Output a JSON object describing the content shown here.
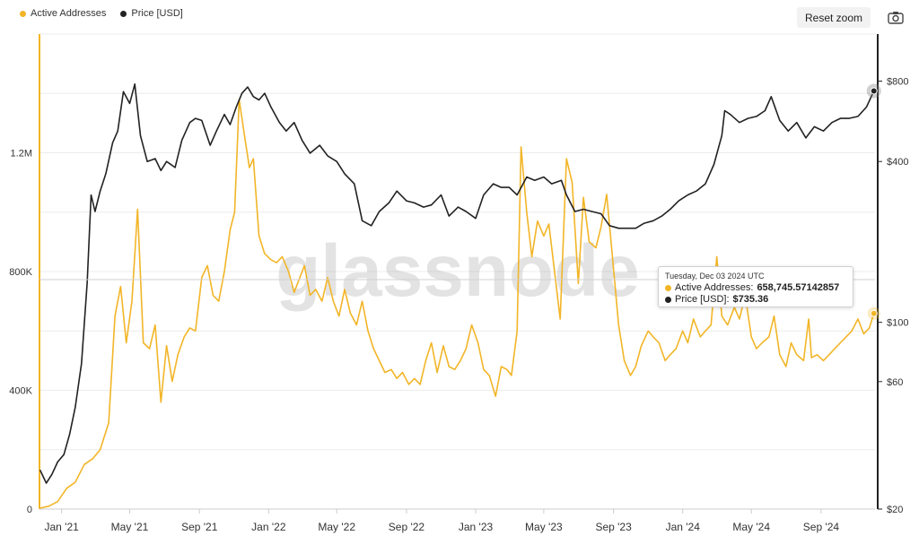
{
  "legend": [
    {
      "label": "Active Addresses",
      "color": "#f2b527"
    },
    {
      "label": "Price [USD]",
      "color": "#222222"
    }
  ],
  "toolbar": {
    "reset_label": "Reset zoom",
    "camera_icon": "camera-icon"
  },
  "watermark": "glassnode",
  "tooltip": {
    "date": "Tuesday, Dec 03 2024 UTC",
    "series1_label": "Active Addresses:",
    "series1_value": "658,745.57142857",
    "series2_label": "Price [USD]:",
    "series2_value": "$735.36"
  },
  "chart_data": {
    "type": "line",
    "x_ticks": [
      "Jan '21",
      "May '21",
      "Sep '21",
      "Jan '22",
      "May '22",
      "Sep '22",
      "Jan '23",
      "May '23",
      "Sep '23",
      "Jan '24",
      "May '24",
      "Sep '24"
    ],
    "y_left_ticks": [
      "0",
      "400K",
      "800K",
      "1.2M"
    ],
    "y_left_values": [
      0,
      400000,
      800000,
      1200000
    ],
    "y_right_ticks": [
      "$20",
      "$60",
      "$100",
      "$400",
      "$800"
    ],
    "y_right_values": [
      20,
      60,
      100,
      400,
      800
    ],
    "y_right_scale": "log",
    "x_range": [
      "2020-11-23",
      "2024-12-05"
    ],
    "y_left_range": [
      0,
      1600000
    ],
    "y_right_range": [
      20,
      1200
    ],
    "grid": true,
    "legend_position": "top-left",
    "series": [
      {
        "name": "Active Addresses",
        "color": "#f2b527",
        "axis": "left",
        "points": [
          [
            "2020-11-24",
            3000
          ],
          [
            "2020-12-10",
            10000
          ],
          [
            "2020-12-25",
            25000
          ],
          [
            "2021-01-10",
            70000
          ],
          [
            "2021-01-25",
            90000
          ],
          [
            "2021-02-10",
            150000
          ],
          [
            "2021-02-25",
            170000
          ],
          [
            "2021-03-10",
            200000
          ],
          [
            "2021-03-25",
            290000
          ],
          [
            "2021-04-05",
            650000
          ],
          [
            "2021-04-15",
            750000
          ],
          [
            "2021-04-25",
            560000
          ],
          [
            "2021-05-05",
            700000
          ],
          [
            "2021-05-15",
            1010000
          ],
          [
            "2021-05-25",
            560000
          ],
          [
            "2021-06-05",
            540000
          ],
          [
            "2021-06-15",
            620000
          ],
          [
            "2021-06-25",
            360000
          ],
          [
            "2021-07-05",
            550000
          ],
          [
            "2021-07-15",
            430000
          ],
          [
            "2021-07-25",
            520000
          ],
          [
            "2021-08-05",
            580000
          ],
          [
            "2021-08-15",
            610000
          ],
          [
            "2021-08-25",
            600000
          ],
          [
            "2021-09-05",
            780000
          ],
          [
            "2021-09-15",
            820000
          ],
          [
            "2021-09-25",
            720000
          ],
          [
            "2021-10-05",
            700000
          ],
          [
            "2021-10-15",
            800000
          ],
          [
            "2021-10-25",
            940000
          ],
          [
            "2021-11-02",
            1000000
          ],
          [
            "2021-11-10",
            1380000
          ],
          [
            "2021-11-20",
            1250000
          ],
          [
            "2021-11-28",
            1150000
          ],
          [
            "2021-12-05",
            1180000
          ],
          [
            "2021-12-15",
            920000
          ],
          [
            "2021-12-25",
            860000
          ],
          [
            "2022-01-05",
            840000
          ],
          [
            "2022-01-15",
            830000
          ],
          [
            "2022-01-25",
            850000
          ],
          [
            "2022-02-05",
            800000
          ],
          [
            "2022-02-15",
            730000
          ],
          [
            "2022-02-25",
            780000
          ],
          [
            "2022-03-05",
            820000
          ],
          [
            "2022-03-15",
            720000
          ],
          [
            "2022-03-25",
            740000
          ],
          [
            "2022-04-05",
            700000
          ],
          [
            "2022-04-15",
            780000
          ],
          [
            "2022-04-25",
            700000
          ],
          [
            "2022-05-05",
            650000
          ],
          [
            "2022-05-15",
            740000
          ],
          [
            "2022-05-25",
            660000
          ],
          [
            "2022-06-05",
            620000
          ],
          [
            "2022-06-15",
            700000
          ],
          [
            "2022-06-25",
            600000
          ],
          [
            "2022-07-05",
            540000
          ],
          [
            "2022-07-15",
            500000
          ],
          [
            "2022-07-25",
            460000
          ],
          [
            "2022-08-05",
            470000
          ],
          [
            "2022-08-15",
            440000
          ],
          [
            "2022-08-25",
            460000
          ],
          [
            "2022-09-05",
            420000
          ],
          [
            "2022-09-15",
            440000
          ],
          [
            "2022-09-25",
            420000
          ],
          [
            "2022-10-05",
            500000
          ],
          [
            "2022-10-15",
            560000
          ],
          [
            "2022-10-25",
            460000
          ],
          [
            "2022-11-05",
            550000
          ],
          [
            "2022-11-15",
            480000
          ],
          [
            "2022-11-25",
            470000
          ],
          [
            "2022-12-05",
            500000
          ],
          [
            "2022-12-15",
            540000
          ],
          [
            "2022-12-25",
            620000
          ],
          [
            "2023-01-05",
            560000
          ],
          [
            "2023-01-15",
            470000
          ],
          [
            "2023-01-25",
            450000
          ],
          [
            "2023-02-05",
            380000
          ],
          [
            "2023-02-15",
            480000
          ],
          [
            "2023-02-25",
            470000
          ],
          [
            "2023-03-05",
            450000
          ],
          [
            "2023-03-15",
            600000
          ],
          [
            "2023-03-22",
            1220000
          ],
          [
            "2023-04-01",
            1000000
          ],
          [
            "2023-04-10",
            850000
          ],
          [
            "2023-04-20",
            970000
          ],
          [
            "2023-05-01",
            920000
          ],
          [
            "2023-05-10",
            960000
          ],
          [
            "2023-05-20",
            800000
          ],
          [
            "2023-05-30",
            640000
          ],
          [
            "2023-06-10",
            1180000
          ],
          [
            "2023-06-20",
            1100000
          ],
          [
            "2023-07-01",
            760000
          ],
          [
            "2023-07-10",
            1050000
          ],
          [
            "2023-07-20",
            900000
          ],
          [
            "2023-08-01",
            880000
          ],
          [
            "2023-08-10",
            950000
          ],
          [
            "2023-08-20",
            1060000
          ],
          [
            "2023-08-30",
            850000
          ],
          [
            "2023-09-10",
            620000
          ],
          [
            "2023-09-20",
            500000
          ],
          [
            "2023-10-01",
            450000
          ],
          [
            "2023-10-10",
            480000
          ],
          [
            "2023-10-20",
            550000
          ],
          [
            "2023-11-01",
            600000
          ],
          [
            "2023-11-10",
            580000
          ],
          [
            "2023-11-20",
            560000
          ],
          [
            "2023-12-01",
            500000
          ],
          [
            "2023-12-10",
            520000
          ],
          [
            "2023-12-20",
            540000
          ],
          [
            "2024-01-01",
            600000
          ],
          [
            "2024-01-10",
            560000
          ],
          [
            "2024-01-20",
            640000
          ],
          [
            "2024-02-01",
            580000
          ],
          [
            "2024-02-10",
            600000
          ],
          [
            "2024-02-20",
            620000
          ],
          [
            "2024-03-01",
            850000
          ],
          [
            "2024-03-10",
            650000
          ],
          [
            "2024-03-20",
            620000
          ],
          [
            "2024-04-01",
            680000
          ],
          [
            "2024-04-10",
            640000
          ],
          [
            "2024-04-20",
            720000
          ],
          [
            "2024-05-01",
            580000
          ],
          [
            "2024-05-10",
            540000
          ],
          [
            "2024-05-20",
            560000
          ],
          [
            "2024-06-01",
            580000
          ],
          [
            "2024-06-10",
            650000
          ],
          [
            "2024-06-20",
            520000
          ],
          [
            "2024-07-01",
            480000
          ],
          [
            "2024-07-10",
            560000
          ],
          [
            "2024-07-20",
            520000
          ],
          [
            "2024-08-01",
            500000
          ],
          [
            "2024-08-10",
            640000
          ],
          [
            "2024-08-15",
            510000
          ],
          [
            "2024-08-25",
            520000
          ],
          [
            "2024-09-05",
            500000
          ],
          [
            "2024-09-15",
            520000
          ],
          [
            "2024-09-25",
            540000
          ],
          [
            "2024-10-05",
            560000
          ],
          [
            "2024-10-15",
            580000
          ],
          [
            "2024-10-25",
            600000
          ],
          [
            "2024-11-05",
            640000
          ],
          [
            "2024-11-15",
            590000
          ],
          [
            "2024-11-25",
            610000
          ],
          [
            "2024-12-03",
            658746
          ]
        ]
      },
      {
        "name": "Price [USD]",
        "color": "#222222",
        "axis": "right",
        "points": [
          [
            "2020-11-24",
            28
          ],
          [
            "2020-12-05",
            25
          ],
          [
            "2020-12-15",
            27
          ],
          [
            "2020-12-25",
            30
          ],
          [
            "2021-01-05",
            32
          ],
          [
            "2021-01-15",
            38
          ],
          [
            "2021-01-25",
            48
          ],
          [
            "2021-02-05",
            70
          ],
          [
            "2021-02-15",
            140
          ],
          [
            "2021-02-22",
            300
          ],
          [
            "2021-03-01",
            260
          ],
          [
            "2021-03-10",
            310
          ],
          [
            "2021-03-20",
            360
          ],
          [
            "2021-04-01",
            470
          ],
          [
            "2021-04-10",
            520
          ],
          [
            "2021-04-20",
            730
          ],
          [
            "2021-05-01",
            660
          ],
          [
            "2021-05-10",
            780
          ],
          [
            "2021-05-20",
            500
          ],
          [
            "2021-06-01",
            400
          ],
          [
            "2021-06-15",
            410
          ],
          [
            "2021-06-25",
            370
          ],
          [
            "2021-07-05",
            400
          ],
          [
            "2021-07-20",
            380
          ],
          [
            "2021-08-01",
            480
          ],
          [
            "2021-08-15",
            560
          ],
          [
            "2021-08-25",
            580
          ],
          [
            "2021-09-05",
            570
          ],
          [
            "2021-09-20",
            460
          ],
          [
            "2021-10-01",
            520
          ],
          [
            "2021-10-15",
            600
          ],
          [
            "2021-10-25",
            550
          ],
          [
            "2021-11-05",
            640
          ],
          [
            "2021-11-15",
            720
          ],
          [
            "2021-11-25",
            760
          ],
          [
            "2021-12-05",
            700
          ],
          [
            "2021-12-15",
            680
          ],
          [
            "2021-12-25",
            720
          ],
          [
            "2022-01-05",
            640
          ],
          [
            "2022-01-20",
            560
          ],
          [
            "2022-02-01",
            520
          ],
          [
            "2022-02-15",
            560
          ],
          [
            "2022-03-01",
            480
          ],
          [
            "2022-03-15",
            430
          ],
          [
            "2022-04-01",
            460
          ],
          [
            "2022-04-15",
            420
          ],
          [
            "2022-05-01",
            400
          ],
          [
            "2022-05-15",
            360
          ],
          [
            "2022-06-01",
            330
          ],
          [
            "2022-06-15",
            240
          ],
          [
            "2022-07-01",
            230
          ],
          [
            "2022-07-15",
            260
          ],
          [
            "2022-08-01",
            280
          ],
          [
            "2022-08-15",
            310
          ],
          [
            "2022-09-01",
            285
          ],
          [
            "2022-09-15",
            280
          ],
          [
            "2022-10-01",
            270
          ],
          [
            "2022-10-15",
            275
          ],
          [
            "2022-11-01",
            300
          ],
          [
            "2022-11-15",
            250
          ],
          [
            "2022-12-01",
            270
          ],
          [
            "2022-12-15",
            260
          ],
          [
            "2023-01-01",
            245
          ],
          [
            "2023-01-15",
            300
          ],
          [
            "2023-02-01",
            330
          ],
          [
            "2023-02-15",
            320
          ],
          [
            "2023-03-01",
            320
          ],
          [
            "2023-03-15",
            300
          ],
          [
            "2023-04-01",
            350
          ],
          [
            "2023-04-15",
            340
          ],
          [
            "2023-05-01",
            350
          ],
          [
            "2023-05-15",
            330
          ],
          [
            "2023-06-01",
            340
          ],
          [
            "2023-06-10",
            300
          ],
          [
            "2023-06-25",
            260
          ],
          [
            "2023-07-10",
            265
          ],
          [
            "2023-07-25",
            260
          ],
          [
            "2023-08-10",
            255
          ],
          [
            "2023-08-25",
            230
          ],
          [
            "2023-09-10",
            225
          ],
          [
            "2023-09-25",
            225
          ],
          [
            "2023-10-10",
            225
          ],
          [
            "2023-10-25",
            235
          ],
          [
            "2023-11-10",
            240
          ],
          [
            "2023-11-25",
            250
          ],
          [
            "2023-12-10",
            265
          ],
          [
            "2023-12-25",
            285
          ],
          [
            "2024-01-10",
            300
          ],
          [
            "2024-01-25",
            310
          ],
          [
            "2024-02-10",
            330
          ],
          [
            "2024-02-25",
            390
          ],
          [
            "2024-03-10",
            500
          ],
          [
            "2024-03-15",
            620
          ],
          [
            "2024-03-25",
            600
          ],
          [
            "2024-04-10",
            560
          ],
          [
            "2024-04-25",
            580
          ],
          [
            "2024-05-10",
            590
          ],
          [
            "2024-05-25",
            620
          ],
          [
            "2024-06-05",
            700
          ],
          [
            "2024-06-20",
            570
          ],
          [
            "2024-07-05",
            520
          ],
          [
            "2024-07-20",
            560
          ],
          [
            "2024-08-05",
            490
          ],
          [
            "2024-08-20",
            540
          ],
          [
            "2024-09-05",
            520
          ],
          [
            "2024-09-20",
            560
          ],
          [
            "2024-10-05",
            580
          ],
          [
            "2024-10-20",
            580
          ],
          [
            "2024-11-05",
            590
          ],
          [
            "2024-11-20",
            640
          ],
          [
            "2024-12-03",
            735
          ]
        ]
      }
    ]
  }
}
